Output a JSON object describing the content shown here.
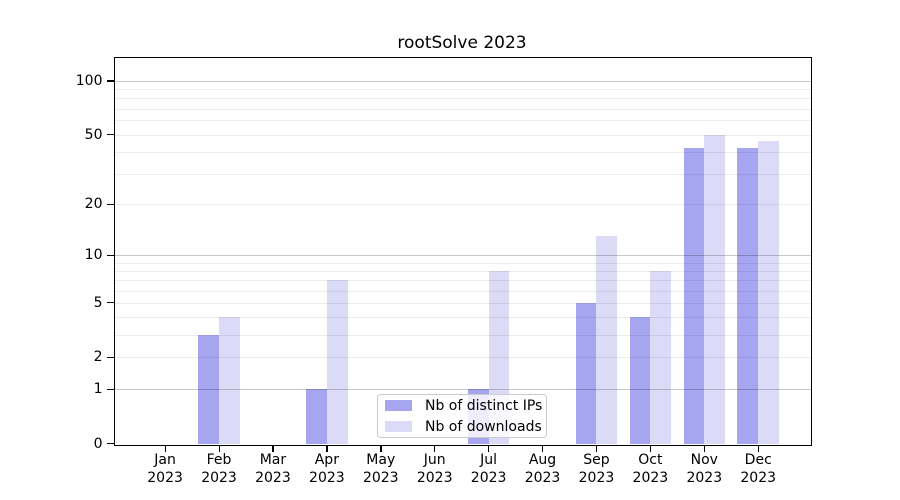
{
  "title": "rootSolve 2023",
  "chart_data": {
    "type": "bar",
    "title": "rootSolve 2023",
    "categories": [
      "Jan",
      "Feb",
      "Mar",
      "Apr",
      "May",
      "Jun",
      "Jul",
      "Aug",
      "Sep",
      "Oct",
      "Nov",
      "Dec"
    ],
    "category_year": "2023",
    "series": [
      {
        "name": "Nb of distinct IPs",
        "color": "#a6a6f0",
        "values": [
          0,
          3,
          0,
          1,
          0,
          0,
          1,
          0,
          5,
          4,
          42,
          42
        ]
      },
      {
        "name": "Nb of downloads",
        "color": "#dbdbf8",
        "values": [
          0,
          4,
          0,
          7,
          0,
          0,
          8,
          0,
          13,
          8,
          50,
          46
        ]
      }
    ],
    "yscale": "log1p",
    "ylim": [
      0,
      135
    ],
    "y_ticks": [
      0,
      1,
      2,
      5,
      10,
      20,
      50,
      100
    ],
    "y_tick_labels": [
      "0",
      "1",
      "2",
      "5",
      "10",
      "20",
      "50",
      "100"
    ],
    "major_gridlines": [
      1,
      10,
      100
    ],
    "minor_gridlines": [
      2,
      3,
      4,
      5,
      6,
      7,
      8,
      9,
      20,
      30,
      40,
      50,
      60,
      70,
      80,
      90
    ],
    "grid": true,
    "legend_position": "lower center",
    "colors": {
      "major_grid": "#c8c8c8",
      "minor_grid": "#ececec",
      "spine": "#000000",
      "background": "#ffffff"
    }
  }
}
